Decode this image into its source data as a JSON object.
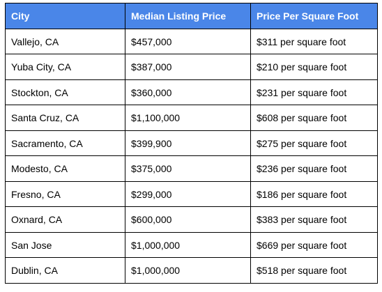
{
  "table": {
    "header_color": "#4a86e8",
    "columns": [
      "City",
      "Median Listing Price",
      "Price Per Square Foot"
    ],
    "rows": [
      [
        "Vallejo, CA",
        "$457,000",
        "$311 per square foot"
      ],
      [
        "Yuba City, CA",
        "$387,000",
        "$210 per square foot"
      ],
      [
        "Stockton, CA",
        "$360,000",
        "$231 per square foot"
      ],
      [
        "Santa Cruz, CA",
        "$1,100,000",
        "$608 per square foot"
      ],
      [
        "Sacramento, CA",
        "$399,900",
        "$275 per square foot"
      ],
      [
        "Modesto, CA",
        "$375,000",
        "$236 per square foot"
      ],
      [
        "Fresno, CA",
        "$299,000",
        "$186 per square foot"
      ],
      [
        "Oxnard, CA",
        "$600,000",
        "$383 per square foot"
      ],
      [
        "San Jose",
        "$1,000,000",
        "$669 per square foot"
      ],
      [
        "Dublin, CA",
        "$1,000,000",
        "$518 per square foot"
      ]
    ]
  }
}
